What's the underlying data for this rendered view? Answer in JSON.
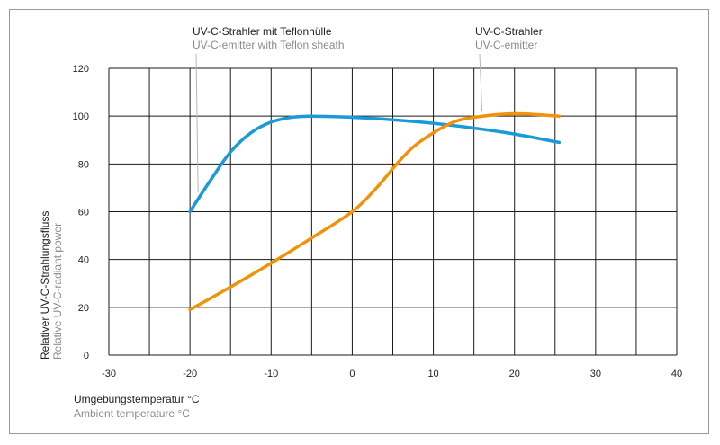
{
  "chart_data": {
    "type": "line",
    "x_label_de": "Umgebungstemperatur °C",
    "x_label_en": "Ambient temperature °C",
    "y_label_de": "Relativer UV-C-Strahlungsfluss",
    "y_label_en": "Relative UV-C-radiant power",
    "xlim": [
      -30,
      40
    ],
    "ylim": [
      0,
      120
    ],
    "x_ticks": [
      -30,
      -20,
      -10,
      0,
      10,
      20,
      30,
      40
    ],
    "y_ticks": [
      0,
      20,
      40,
      60,
      80,
      100,
      120
    ],
    "x_minor_step": 5,
    "grid": true,
    "series": [
      {
        "name_de": "UV-C-Strahler mit Teflonhülle",
        "name_en": "UV-C-emitter with Teflon sheath",
        "color": "#1a9ad6",
        "label_anchor": [
          -19,
          68
        ],
        "points": [
          [
            -20,
            60
          ],
          [
            -17.5,
            73
          ],
          [
            -15,
            85
          ],
          [
            -12.5,
            93
          ],
          [
            -10,
            97.5
          ],
          [
            -7.5,
            99.5
          ],
          [
            -5,
            100
          ],
          [
            0,
            99.5
          ],
          [
            5,
            98.5
          ],
          [
            10,
            97
          ],
          [
            15,
            95
          ],
          [
            20,
            92.5
          ],
          [
            25.5,
            89
          ]
        ]
      },
      {
        "name_de": "UV-C-Strahler",
        "name_en": "UV-C-emitter",
        "color": "#f0920a",
        "label_anchor": [
          16,
          102
        ],
        "points": [
          [
            -20,
            19
          ],
          [
            -15,
            28.5
          ],
          [
            -10,
            38.5
          ],
          [
            -5,
            49
          ],
          [
            0,
            60
          ],
          [
            3,
            70
          ],
          [
            5.5,
            80
          ],
          [
            7.5,
            87
          ],
          [
            10,
            93
          ],
          [
            12.5,
            97.5
          ],
          [
            15,
            99.5
          ],
          [
            20,
            101
          ],
          [
            25.5,
            100
          ]
        ]
      }
    ]
  }
}
